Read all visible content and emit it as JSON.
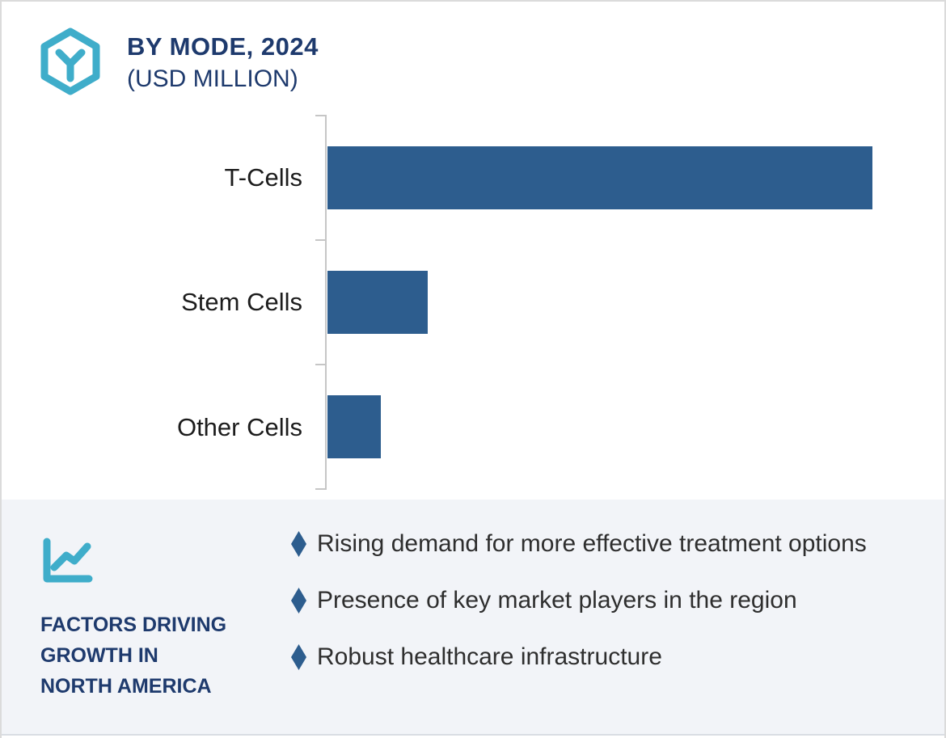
{
  "header": {
    "title": "BY MODE, 2024",
    "subtitle": "(USD MILLION)",
    "logo_icon": "hexagon-y-logo-icon"
  },
  "colors": {
    "bar_blue": "#2d5d8e",
    "accent_teal": "#3fadca",
    "navy_text": "#1e3a6d",
    "panel_background": "#f2f4f8",
    "axis_gray": "#c6c6c6"
  },
  "chart_data": {
    "type": "bar",
    "orientation": "horizontal",
    "title": "BY MODE, 2024 (USD MILLION)",
    "value_unit": "USD Million",
    "categories": [
      "T-Cells",
      "Stem Cells",
      "Other Cells"
    ],
    "values_relative_pct_of_max": [
      100,
      18.4,
      9.8
    ],
    "value_labels_shown": false,
    "axis_numeric_labels_shown": false,
    "bar_color": "#2d5d8e",
    "grid": "off",
    "legend": "none"
  },
  "factors_panel": {
    "icon": "trend-line-chart-icon",
    "heading_lines": [
      "FACTORS DRIVING",
      "GROWTH IN",
      "NORTH AMERICA"
    ],
    "bullet_marker": "diamond",
    "bullets": [
      "Rising demand for more effective treatment options",
      "Presence of key market players in the region",
      "Robust healthcare infrastructure"
    ]
  }
}
